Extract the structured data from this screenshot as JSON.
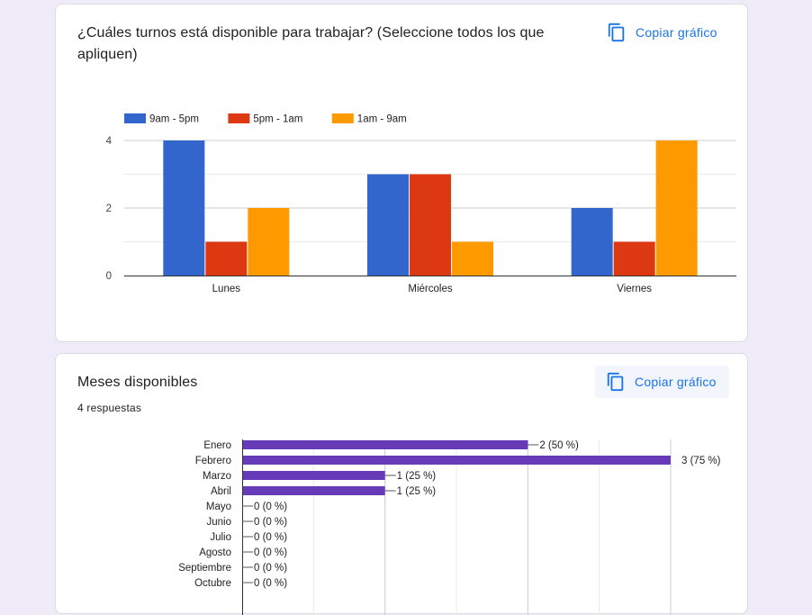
{
  "question1": {
    "title": "¿Cuáles turnos está disponible para trabajar? (Seleccione todos los que apliquen)",
    "copy_label": "Copiar gráfico",
    "copy_icon": "copy-icon"
  },
  "question2": {
    "title": "Meses disponibles",
    "responses": "4 respuestas",
    "copy_label": "Copiar gráfico",
    "copy_icon": "copy-icon"
  },
  "chart_data": [
    {
      "type": "bar",
      "categories": [
        "Lunes",
        "Miércoles",
        "Viernes"
      ],
      "series": [
        {
          "name": "9am - 5pm",
          "color": "#3366cc",
          "values": [
            4,
            3,
            2
          ]
        },
        {
          "name": "5pm - 1am",
          "color": "#dc3912",
          "values": [
            1,
            3,
            1
          ]
        },
        {
          "name": "1am - 9am",
          "color": "#ff9900",
          "values": [
            2,
            1,
            4
          ]
        }
      ],
      "yticks": [
        "0",
        "2",
        "4"
      ],
      "ylim": [
        0,
        4
      ],
      "legend": "top",
      "grid": true
    },
    {
      "type": "bar",
      "orientation": "horizontal",
      "categories": [
        "Enero",
        "Febrero",
        "Marzo",
        "Abril",
        "Mayo",
        "Junio",
        "Julio",
        "Agosto",
        "Septiembre",
        "Octubre"
      ],
      "values": [
        2,
        3,
        1,
        1,
        0,
        0,
        0,
        0,
        0,
        0
      ],
      "labels": [
        "2 (50 %)",
        "3 (75 %)",
        "1 (25 %)",
        "1 (25 %)",
        "0 (0 %)",
        "0 (0 %)",
        "0 (0 %)",
        "0 (0 %)",
        "0 (0 %)",
        "0 (0 %)"
      ],
      "color": "#673ab7",
      "xlim": [
        0,
        3
      ],
      "grid": true
    }
  ]
}
